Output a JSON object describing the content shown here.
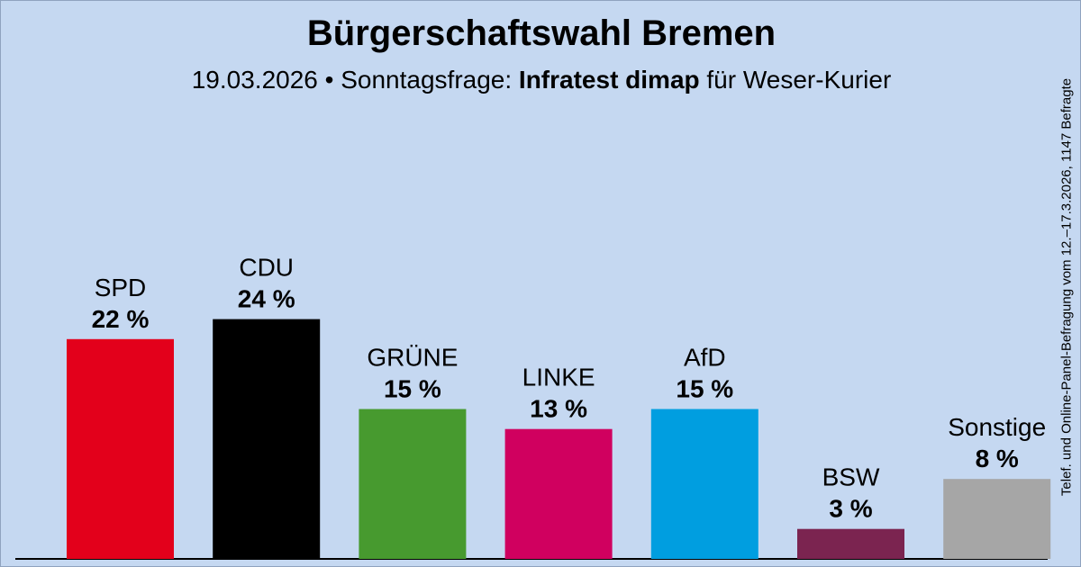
{
  "header": {
    "title": "Bürgerschaftswahl Bremen",
    "subtitle_prefix": "19.03.2026 • Sonntagsfrage:",
    "institute": "Infratest dimap",
    "subtitle_suffix": "für Weser-Kurier"
  },
  "side_note": "Telef. und Online-Panel-Befragung vom 12.–17.3.2026, 1147 Befragte",
  "colors": {
    "background": "#c5d8f1",
    "SPD": "#e3001b",
    "CDU": "#000000",
    "GRÜNE": "#479a2f",
    "LINKE": "#d0005f",
    "AfD": "#009ee0",
    "BSW": "#7b2450",
    "Sonstige": "#a6a6a6"
  },
  "chart_data": {
    "type": "bar",
    "categories": [
      "SPD",
      "CDU",
      "GRÜNE",
      "LINKE",
      "AfD",
      "BSW",
      "Sonstige"
    ],
    "values": [
      22,
      24,
      15,
      13,
      15,
      3,
      8
    ],
    "value_labels": [
      "22 %",
      "24 %",
      "15 %",
      "13 %",
      "15 %",
      "3 %",
      "8 %"
    ],
    "ylim": [
      0,
      24
    ],
    "grid": false,
    "legend": "none"
  }
}
